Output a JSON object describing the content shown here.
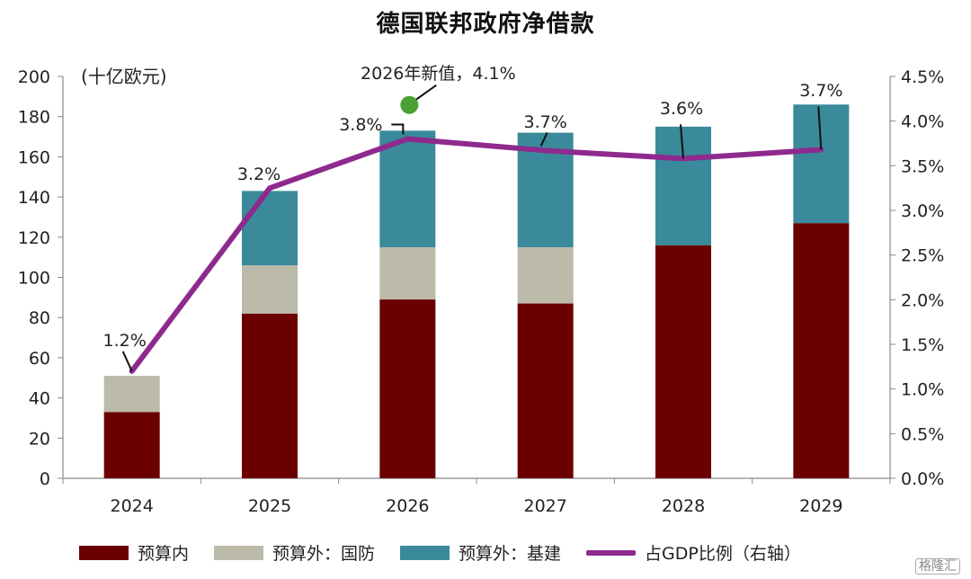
{
  "title": "德国联邦政府净借款",
  "chart_data": {
    "type": "bar",
    "stacked": true,
    "title": "德国联邦政府净借款",
    "unit_label": "(十亿欧元)",
    "categories": [
      "2024",
      "2025",
      "2026",
      "2027",
      "2028",
      "2029"
    ],
    "series": [
      {
        "name": "预算内",
        "values": [
          33,
          82,
          89,
          87,
          116,
          127
        ],
        "color": "#6b0000"
      },
      {
        "name": "预算外：国防",
        "values": [
          18,
          24,
          26,
          28,
          0,
          0
        ],
        "color": "#bcbaa8"
      },
      {
        "name": "预算外：基建",
        "values": [
          0,
          37,
          58,
          57,
          59,
          59
        ],
        "color": "#3a8a9b"
      }
    ],
    "line_series": {
      "name": "占GDP比例（右轴）",
      "axis": "right",
      "values": [
        1.2,
        3.25,
        3.8,
        3.67,
        3.58,
        3.68
      ],
      "labels": [
        "1.2%",
        "3.2%",
        "3.8%",
        "3.7%",
        "3.6%",
        "3.7%"
      ],
      "color": "#8e2a8e"
    },
    "highlight_point": {
      "category": "2026",
      "value": 4.1,
      "label": "2026年新值，4.1%",
      "color": "#4aa035"
    },
    "ylim": [
      0,
      200
    ],
    "yticks": [
      "0",
      "20",
      "40",
      "60",
      "80",
      "100",
      "120",
      "140",
      "160",
      "180",
      "200"
    ],
    "y2lim": [
      0,
      4.5
    ],
    "y2ticks": [
      "0.0%",
      "0.5%",
      "1.0%",
      "1.5%",
      "2.0%",
      "2.5%",
      "3.0%",
      "3.5%",
      "4.0%",
      "4.5%"
    ],
    "grid": false,
    "legend_position": "bottom"
  },
  "watermark": "格隆汇"
}
